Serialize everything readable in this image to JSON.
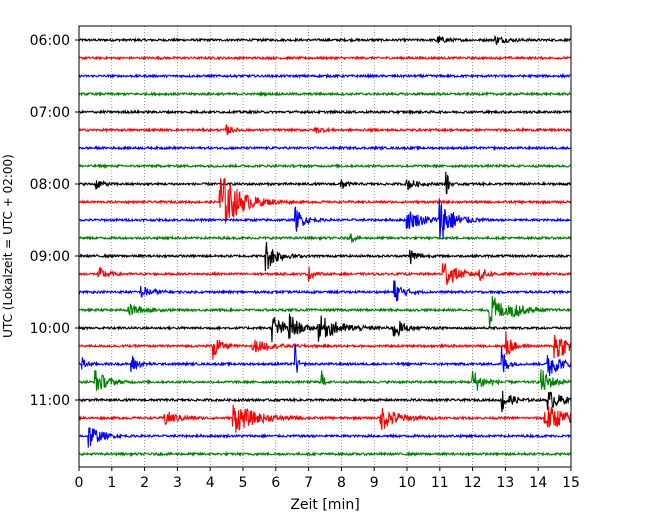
{
  "chart_data": {
    "type": "line",
    "title": "",
    "xlabel": "Zeit  [min]",
    "ylabel": "UTC (Lokalzeit = UTC + 02:00)",
    "xlim": [
      0,
      15
    ],
    "xticks": [
      "0",
      "1",
      "2",
      "3",
      "4",
      "5",
      "6",
      "7",
      "8",
      "9",
      "10",
      "11",
      "12",
      "13",
      "14",
      "15"
    ],
    "yticks": [
      "06:00",
      "07:00",
      "08:00",
      "09:00",
      "10:00",
      "11:00"
    ],
    "trace_interval_minutes": 15,
    "first_trace": "06:00",
    "trace_count": 24,
    "grid": "vertical dotted",
    "trace_colors": [
      "#000000",
      "#ff0000",
      "#0000ff",
      "#008000"
    ],
    "traces": [
      {
        "start": "06:00",
        "color": "#000000",
        "events": [
          {
            "x": 10.9,
            "amp": 0.25,
            "dur": 0.4
          },
          {
            "x": 12.7,
            "amp": 0.25,
            "dur": 0.5
          }
        ]
      },
      {
        "start": "06:15",
        "color": "#ff0000",
        "events": []
      },
      {
        "start": "06:30",
        "color": "#0000ff",
        "events": []
      },
      {
        "start": "06:45",
        "color": "#008000",
        "events": []
      },
      {
        "start": "07:00",
        "color": "#000000",
        "events": []
      },
      {
        "start": "07:15",
        "color": "#ff0000",
        "events": [
          {
            "x": 4.5,
            "amp": 0.3,
            "dur": 0.3
          },
          {
            "x": 7.2,
            "amp": 0.25,
            "dur": 0.3
          }
        ]
      },
      {
        "start": "07:30",
        "color": "#0000ff",
        "events": []
      },
      {
        "start": "07:45",
        "color": "#008000",
        "events": []
      },
      {
        "start": "08:00",
        "color": "#000000",
        "events": [
          {
            "x": 0.5,
            "amp": 0.35,
            "dur": 0.3
          },
          {
            "x": 8.0,
            "amp": 0.4,
            "dur": 0.2
          },
          {
            "x": 10.0,
            "amp": 0.4,
            "dur": 0.4
          },
          {
            "x": 11.2,
            "amp": 1.0,
            "dur": 0.1
          }
        ]
      },
      {
        "start": "08:15",
        "color": "#ff0000",
        "events": [
          {
            "x": 4.3,
            "amp": 2.0,
            "dur": 0.9
          }
        ]
      },
      {
        "start": "08:30",
        "color": "#0000ff",
        "events": [
          {
            "x": 6.6,
            "amp": 0.8,
            "dur": 0.4
          },
          {
            "x": 10.0,
            "amp": 0.6,
            "dur": 0.9
          },
          {
            "x": 11.0,
            "amp": 1.4,
            "dur": 0.6
          }
        ]
      },
      {
        "start": "08:45",
        "color": "#008000",
        "events": [
          {
            "x": 8.3,
            "amp": 0.3,
            "dur": 0.15
          }
        ]
      },
      {
        "start": "09:00",
        "color": "#000000",
        "events": [
          {
            "x": 5.7,
            "amp": 1.0,
            "dur": 0.5
          },
          {
            "x": 10.1,
            "amp": 0.5,
            "dur": 0.3
          }
        ]
      },
      {
        "start": "09:15",
        "color": "#ff0000",
        "events": [
          {
            "x": 0.6,
            "amp": 0.4,
            "dur": 0.4
          },
          {
            "x": 7.0,
            "amp": 0.5,
            "dur": 0.2
          },
          {
            "x": 11.1,
            "amp": 1.0,
            "dur": 0.6
          },
          {
            "x": 12.2,
            "amp": 0.4,
            "dur": 0.4
          }
        ]
      },
      {
        "start": "09:30",
        "color": "#0000ff",
        "events": [
          {
            "x": 1.9,
            "amp": 0.4,
            "dur": 0.5
          },
          {
            "x": 9.6,
            "amp": 0.8,
            "dur": 0.4
          }
        ]
      },
      {
        "start": "09:45",
        "color": "#008000",
        "events": [
          {
            "x": 1.5,
            "amp": 0.4,
            "dur": 0.6
          },
          {
            "x": 12.5,
            "amp": 1.2,
            "dur": 0.6
          },
          {
            "x": 13.2,
            "amp": 0.4,
            "dur": 0.6
          }
        ]
      },
      {
        "start": "10:00",
        "color": "#000000",
        "events": [
          {
            "x": 5.9,
            "amp": 0.9,
            "dur": 0.5
          },
          {
            "x": 6.4,
            "amp": 0.9,
            "dur": 0.4
          },
          {
            "x": 7.3,
            "amp": 0.8,
            "dur": 1.0
          },
          {
            "x": 9.6,
            "amp": 0.8,
            "dur": 0.4
          }
        ]
      },
      {
        "start": "10:15",
        "color": "#ff0000",
        "events": [
          {
            "x": 4.1,
            "amp": 0.9,
            "dur": 0.3
          },
          {
            "x": 5.3,
            "amp": 0.4,
            "dur": 0.8
          },
          {
            "x": 13.0,
            "amp": 1.0,
            "dur": 0.3
          },
          {
            "x": 14.5,
            "amp": 1.1,
            "dur": 0.6
          }
        ]
      },
      {
        "start": "10:30",
        "color": "#0000ff",
        "events": [
          {
            "x": 0.1,
            "amp": 0.4,
            "dur": 0.2
          },
          {
            "x": 1.6,
            "amp": 0.6,
            "dur": 0.3
          },
          {
            "x": 6.6,
            "amp": 1.5,
            "dur": 0.05
          },
          {
            "x": 12.9,
            "amp": 1.2,
            "dur": 0.2
          },
          {
            "x": 14.3,
            "amp": 1.0,
            "dur": 0.5
          }
        ]
      },
      {
        "start": "10:45",
        "color": "#008000",
        "events": [
          {
            "x": 0.5,
            "amp": 0.8,
            "dur": 0.5
          },
          {
            "x": 7.4,
            "amp": 1.2,
            "dur": 0.05
          },
          {
            "x": 12.0,
            "amp": 0.8,
            "dur": 0.5
          },
          {
            "x": 14.1,
            "amp": 0.8,
            "dur": 0.5
          }
        ]
      },
      {
        "start": "11:00",
        "color": "#000000",
        "events": [
          {
            "x": 12.9,
            "amp": 0.8,
            "dur": 0.4
          },
          {
            "x": 14.3,
            "amp": 0.6,
            "dur": 0.7
          }
        ]
      },
      {
        "start": "11:15",
        "color": "#ff0000",
        "events": [
          {
            "x": 2.6,
            "amp": 0.5,
            "dur": 0.6
          },
          {
            "x": 4.7,
            "amp": 1.0,
            "dur": 1.0
          },
          {
            "x": 9.2,
            "amp": 0.8,
            "dur": 0.8
          },
          {
            "x": 14.2,
            "amp": 0.9,
            "dur": 1.1
          }
        ]
      },
      {
        "start": "11:30",
        "color": "#0000ff",
        "events": [
          {
            "x": 0.3,
            "amp": 0.8,
            "dur": 0.5
          }
        ]
      },
      {
        "start": "11:45",
        "color": "#008000",
        "events": []
      }
    ]
  }
}
